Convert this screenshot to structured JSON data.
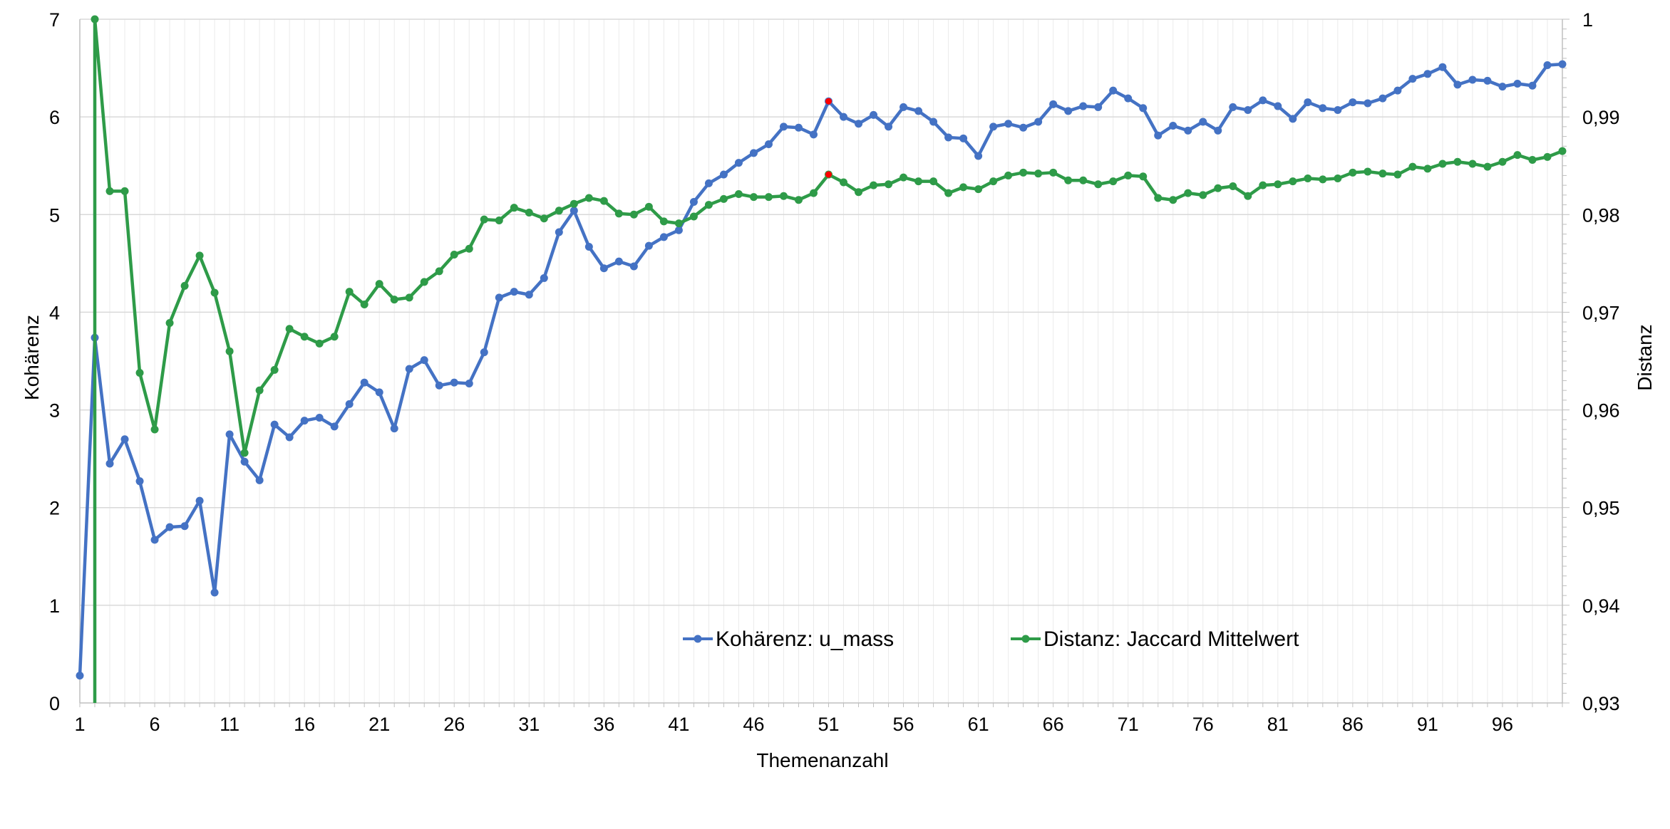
{
  "chart_data": {
    "type": "line",
    "xlabel": "Themenanzahl",
    "ylabel": "Kohärenz",
    "y2label": "Distanz",
    "x": [
      1,
      2,
      3,
      4,
      5,
      6,
      7,
      8,
      9,
      10,
      11,
      12,
      13,
      14,
      15,
      16,
      17,
      18,
      19,
      20,
      21,
      22,
      23,
      24,
      25,
      26,
      27,
      28,
      29,
      30,
      31,
      32,
      33,
      34,
      35,
      36,
      37,
      38,
      39,
      40,
      41,
      42,
      43,
      44,
      45,
      46,
      47,
      48,
      49,
      50,
      51,
      52,
      53,
      54,
      55,
      56,
      57,
      58,
      59,
      60,
      61,
      62,
      63,
      64,
      65,
      66,
      67,
      68,
      69,
      70,
      71,
      72,
      73,
      74,
      75,
      76,
      77,
      78,
      79,
      80,
      81,
      82,
      83,
      84,
      85,
      86,
      87,
      88,
      89,
      90,
      91,
      92,
      93,
      94,
      95,
      96,
      97,
      98,
      99,
      100
    ],
    "xlim": [
      1,
      100
    ],
    "x_ticks": [
      1,
      6,
      11,
      16,
      21,
      26,
      31,
      36,
      41,
      46,
      51,
      56,
      61,
      66,
      71,
      76,
      81,
      86,
      91,
      96
    ],
    "ylim": [
      0,
      7
    ],
    "y_ticks": [
      0,
      1,
      2,
      3,
      4,
      5,
      6,
      7
    ],
    "y2lim": [
      0.93,
      1.0
    ],
    "y2_ticks": [
      "0,93",
      "0,94",
      "0,95",
      "0,96",
      "0,97",
      "0,98",
      "0,99",
      "1"
    ],
    "grid": true,
    "legend_placement": "bottom-center",
    "series": [
      {
        "name": "Kohärenz: u_mass",
        "axis": "left",
        "color": "#4472C4",
        "values": [
          0.28,
          3.74,
          2.45,
          2.7,
          2.27,
          1.67,
          1.8,
          1.81,
          2.07,
          1.13,
          2.75,
          2.47,
          2.28,
          2.85,
          2.72,
          2.89,
          2.92,
          2.83,
          3.06,
          3.28,
          3.18,
          2.81,
          3.42,
          3.51,
          3.25,
          3.28,
          3.27,
          3.59,
          4.15,
          4.21,
          4.18,
          4.35,
          4.82,
          5.04,
          4.67,
          4.45,
          4.52,
          4.47,
          4.68,
          4.77,
          4.84,
          5.13,
          5.32,
          5.41,
          5.53,
          5.63,
          5.72,
          5.9,
          5.89,
          5.82,
          6.16,
          6.0,
          5.93,
          6.02,
          5.9,
          6.1,
          6.06,
          5.95,
          5.79,
          5.78,
          5.6,
          5.9,
          5.93,
          5.89,
          5.95,
          6.13,
          6.06,
          6.11,
          6.1,
          6.27,
          6.19,
          6.09,
          5.81,
          5.91,
          5.86,
          5.95,
          5.86,
          6.1,
          6.07,
          6.17,
          6.11,
          5.98,
          6.15,
          6.09,
          6.07,
          6.15,
          6.14,
          6.19,
          6.27,
          6.39,
          6.44,
          6.51,
          6.33,
          6.38,
          6.37,
          6.31,
          6.34,
          6.32,
          6.53,
          6.54
        ]
      },
      {
        "name": "Distanz: Jaccard Mittelwert",
        "axis": "right",
        "color": "#2E9B48",
        "values": [
          null,
          1.0,
          0.9824,
          0.9824,
          0.9638,
          0.958,
          0.9689,
          0.9727,
          0.9758,
          0.972,
          0.966,
          0.9556,
          0.962,
          0.9641,
          0.9683,
          0.9675,
          0.9668,
          0.9675,
          0.9721,
          0.9708,
          0.9729,
          0.9713,
          0.9715,
          0.9731,
          0.9742,
          0.9759,
          0.9765,
          0.9795,
          0.9794,
          0.9807,
          0.9802,
          0.9796,
          0.9804,
          0.9811,
          0.9817,
          0.9814,
          0.9801,
          0.98,
          0.9808,
          0.9793,
          0.9791,
          0.9798,
          0.981,
          0.9816,
          0.9821,
          0.9818,
          0.9818,
          0.9819,
          0.9815,
          0.9822,
          0.9841,
          0.9833,
          0.9823,
          0.983,
          0.9831,
          0.9838,
          0.9834,
          0.9834,
          0.9822,
          0.9828,
          0.9826,
          0.9834,
          0.984,
          0.9843,
          0.9842,
          0.9843,
          0.9835,
          0.9835,
          0.9831,
          0.9834,
          0.984,
          0.9839,
          0.9817,
          0.9815,
          0.9822,
          0.982,
          0.9827,
          0.9829,
          0.9819,
          0.983,
          0.9831,
          0.9834,
          0.9837,
          0.9836,
          0.9837,
          0.9843,
          0.9844,
          0.9842,
          0.9841,
          0.9849,
          0.9847,
          0.9852,
          0.9854,
          0.9852,
          0.9849,
          0.9854,
          0.9861,
          0.9856,
          0.9859,
          0.9865
        ]
      }
    ],
    "highlights": [
      {
        "series": 0,
        "x": 51,
        "color": "#FF0000"
      },
      {
        "series": 1,
        "x": 51,
        "color": "#FF0000"
      }
    ]
  }
}
